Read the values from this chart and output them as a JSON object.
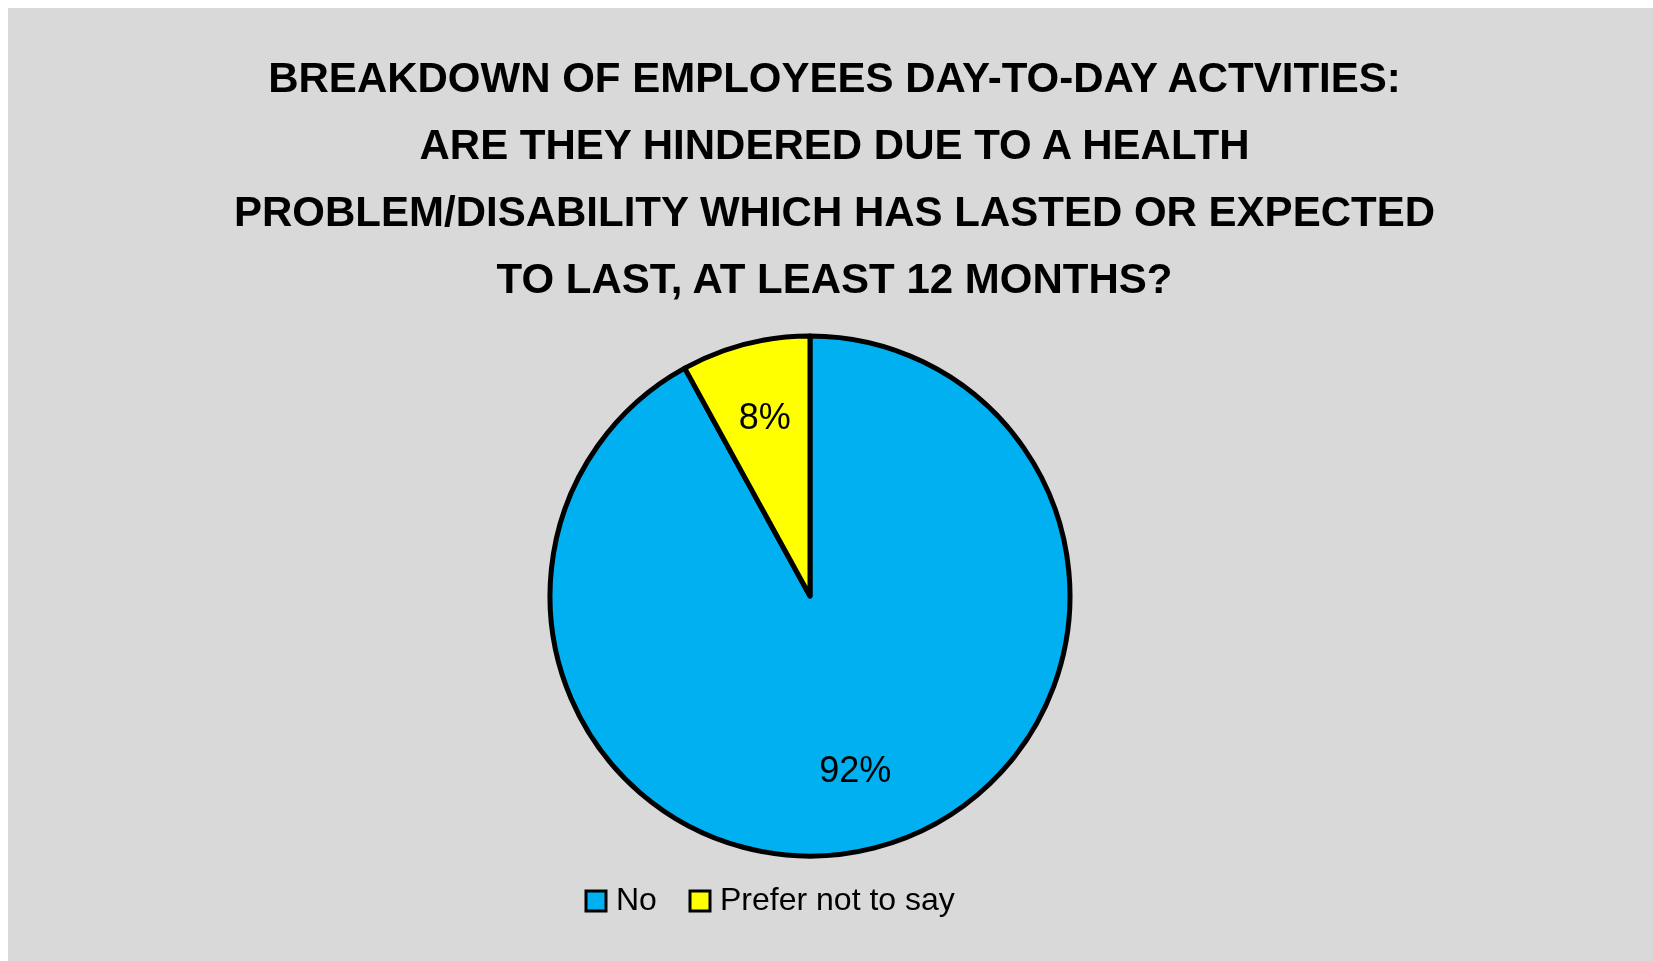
{
  "chart_data": {
    "type": "pie",
    "title": "BREAKDOWN OF EMPLOYEES DAY-TO-DAY ACTVITIES:\nARE THEY HINDERED DUE TO A HEALTH\nPROBLEM/DISABILITY WHICH HAS LASTED OR EXPECTED\nTO LAST, AT LEAST 12 MONTHS?",
    "categories": [
      "No",
      "Prefer not to say"
    ],
    "values": [
      92,
      8
    ],
    "colors": [
      "#00b0f0",
      "#ffff00"
    ],
    "value_labels": [
      "92%",
      "8%"
    ],
    "legend": "bottom"
  }
}
